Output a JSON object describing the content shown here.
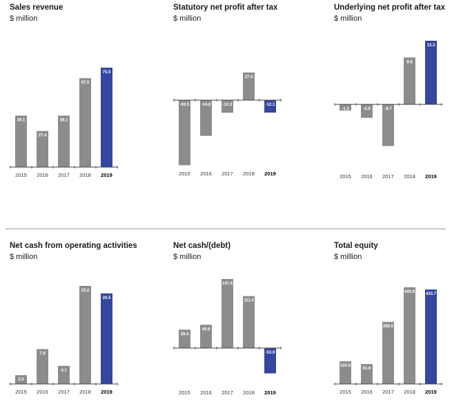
{
  "colors": {
    "bar": "#8c8c8e",
    "highlight": "#3346a0",
    "axis": "#444444"
  },
  "chart_data": [
    {
      "type": "bar",
      "title": "Sales revenue",
      "subtitle": "$ million",
      "categories": [
        "2015",
        "2016",
        "2017",
        "2018",
        "2019"
      ],
      "highlight_category": "2019",
      "values": [
        39.1,
        27.4,
        39.1,
        67.5,
        75.5
      ],
      "labels": [
        "39.1",
        "27.4",
        "39.1",
        "67.5",
        "75.5"
      ],
      "ylim": [
        0,
        76
      ]
    },
    {
      "type": "bar",
      "title": "Statutory net profit after tax",
      "subtitle": "$ million",
      "categories": [
        "2015",
        "2016",
        "2017",
        "2018",
        "2019"
      ],
      "highlight_category": "2019",
      "values": [
        -63.5,
        -34.8,
        -12.3,
        27.0,
        -12.1
      ],
      "labels": [
        "-63.5",
        "-34.8",
        "-12.3",
        "27.0",
        "-12.1"
      ],
      "ylim": [
        -64,
        27
      ]
    },
    {
      "type": "bar",
      "title": "Underlying net profit after tax",
      "subtitle": "$ million",
      "categories": [
        "2015",
        "2016",
        "2017",
        "2018",
        "2019"
      ],
      "highlight_category": "2019",
      "values": [
        -1.3,
        -2.8,
        -8.7,
        9.8,
        13.3
      ],
      "labels": [
        "-1.3",
        "-2.8",
        "-8.7",
        "9.8",
        "13.3"
      ],
      "ylim": [
        -13.4,
        13.3
      ]
    },
    {
      "type": "bar",
      "title": "Net cash from operating activities",
      "subtitle": "$ million",
      "categories": [
        "2015",
        "2016",
        "2017",
        "2018",
        "2019"
      ],
      "highlight_category": "2019",
      "values": [
        2.0,
        7.9,
        4.1,
        22.2,
        20.5
      ],
      "labels": [
        "2.0",
        "7.9",
        "4.1",
        "22.2",
        "20.5"
      ],
      "ylim": [
        0,
        22.2
      ]
    },
    {
      "type": "bar",
      "title": "Net cash/(debt)",
      "subtitle": "$ million",
      "categories": [
        "2015",
        "2016",
        "2017",
        "2018",
        "2019"
      ],
      "highlight_category": "2019",
      "values": [
        39.4,
        49.8,
        147.4,
        111.0,
        -53.9
      ],
      "labels": [
        "39.4",
        "49.8",
        "147.4",
        "111.0",
        "-53.9"
      ],
      "ylim": [
        -78,
        147.4
      ]
    },
    {
      "type": "bar",
      "title": "Total equity",
      "subtitle": "$ million",
      "categories": [
        "2015",
        "2016",
        "2017",
        "2018",
        "2019"
      ],
      "highlight_category": "2019",
      "values": [
        103.9,
        91.6,
        285.0,
        443.9,
        433.7
      ],
      "labels": [
        "103.9",
        "91.6",
        "285.0",
        "443.9",
        "433.7"
      ],
      "ylim": [
        0,
        443.9
      ]
    }
  ]
}
